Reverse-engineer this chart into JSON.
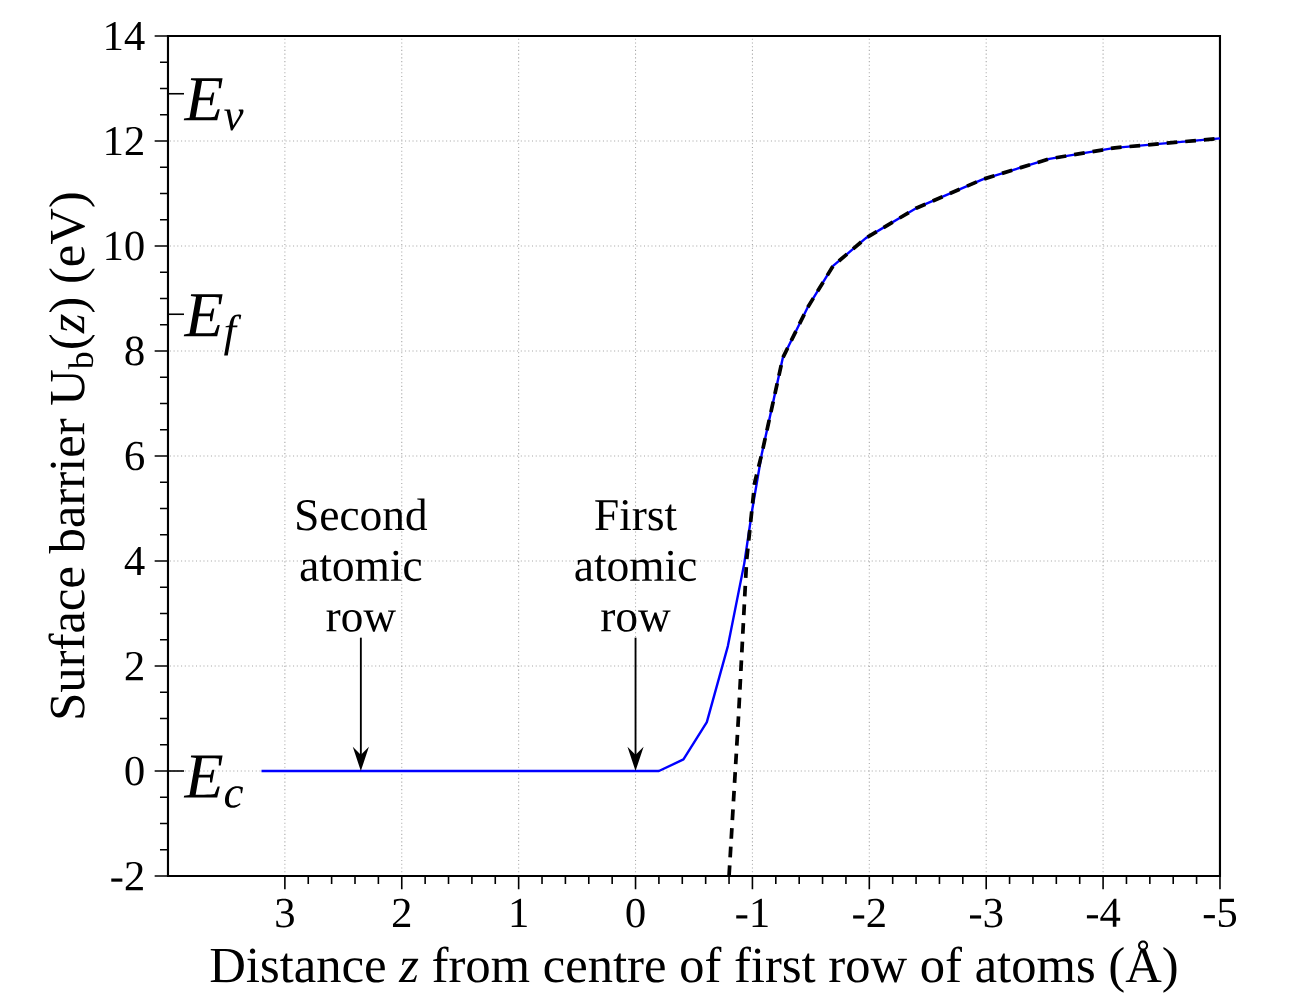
{
  "chart_data": {
    "type": "line",
    "xlabel": "Distance *z* from centre of first row of atoms (Å)",
    "ylabel": "Surface barrier U$_{b}$(*z*) (eV)",
    "xlim": [
      4,
      -5
    ],
    "ylim": [
      -2,
      14
    ],
    "xticks": [
      3,
      2,
      1,
      0,
      -1,
      -2,
      -3,
      -4,
      -5
    ],
    "yticks": [
      -2,
      0,
      2,
      4,
      6,
      8,
      10,
      12,
      14
    ],
    "grid": true,
    "series": [
      {
        "color": "#0000ff",
        "line_style": "solid",
        "x": [
          3.2,
          2.5,
          1.5,
          0.5,
          -0.2,
          -0.41,
          -0.61,
          -0.79,
          -0.93,
          -1.0,
          -1.08,
          -1.26,
          -1.47,
          -1.69,
          -1.97,
          -2.4,
          -2.97,
          -3.54,
          -4.1,
          -5.0
        ],
        "values": [
          0,
          0,
          0,
          0,
          0,
          0.22,
          0.93,
          2.38,
          3.95,
          5.0,
          6.04,
          7.87,
          8.82,
          9.62,
          10.15,
          10.72,
          11.27,
          11.66,
          11.87,
          12.05
        ]
      },
      {
        "color": "#000000",
        "line_style": "dashed",
        "x": [
          -0.8,
          -0.88,
          -0.95,
          -1.02,
          -1.08,
          -1.26,
          -1.47,
          -1.69,
          -1.97,
          -2.4,
          -2.97,
          -3.54,
          -4.1,
          -5.0
        ],
        "values": [
          -2,
          1.0,
          4.0,
          5.5,
          6.04,
          7.87,
          8.82,
          9.62,
          10.15,
          10.72,
          11.27,
          11.66,
          11.87,
          12.05
        ]
      }
    ],
    "annotations": [
      {
        "text": "Second atomic row",
        "x": 2.35,
        "y": 0
      },
      {
        "text": "First atomic row",
        "x": 0,
        "y": 0
      }
    ],
    "ref_lines": [
      {
        "axis": "y",
        "value": 12.9,
        "label": "E$_{v}$"
      },
      {
        "axis": "y",
        "value": 8.7,
        "label": "E$_{f}$"
      },
      {
        "axis": "y",
        "value": 0,
        "label": "E$_{c}$"
      }
    ]
  }
}
